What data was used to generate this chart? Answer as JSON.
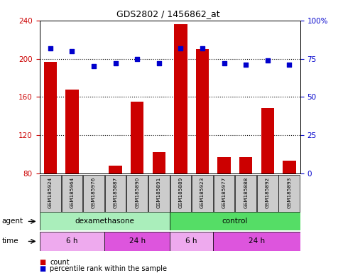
{
  "title": "GDS2802 / 1456862_at",
  "samples": [
    "GSM185924",
    "GSM185964",
    "GSM185976",
    "GSM185887",
    "GSM185890",
    "GSM185891",
    "GSM185889",
    "GSM185923",
    "GSM185977",
    "GSM185888",
    "GSM185892",
    "GSM185893"
  ],
  "bar_values": [
    197,
    168,
    80,
    88,
    155,
    102,
    236,
    210,
    97,
    97,
    148,
    93
  ],
  "percentile_values": [
    82,
    80,
    70,
    72,
    75,
    72,
    82,
    82,
    72,
    71,
    74,
    71
  ],
  "bar_color": "#CC0000",
  "dot_color": "#0000CC",
  "ylim_left": [
    80,
    240
  ],
  "ylim_right": [
    0,
    100
  ],
  "yticks_left": [
    80,
    120,
    160,
    200,
    240
  ],
  "yticks_right": [
    0,
    25,
    50,
    75,
    100
  ],
  "agent_groups": [
    {
      "label": "dexamethasone",
      "start": 0,
      "end": 6,
      "color": "#AAEEBB"
    },
    {
      "label": "control",
      "start": 6,
      "end": 12,
      "color": "#55DD66"
    }
  ],
  "time_groups": [
    {
      "label": "6 h",
      "start": 0,
      "end": 3,
      "color": "#EEAAEE"
    },
    {
      "label": "24 h",
      "start": 3,
      "end": 6,
      "color": "#DD55DD"
    },
    {
      "label": "6 h",
      "start": 6,
      "end": 8,
      "color": "#EEAAEE"
    },
    {
      "label": "24 h",
      "start": 8,
      "end": 12,
      "color": "#DD55DD"
    }
  ],
  "background_color": "#FFFFFF",
  "grid_color": "#000000",
  "axis_color_left": "#CC0000",
  "axis_color_right": "#0000CC",
  "agent_label": "agent",
  "time_label": "time",
  "legend_count_label": "count",
  "legend_percentile_label": "percentile rank within the sample",
  "label_box_color": "#CCCCCC"
}
